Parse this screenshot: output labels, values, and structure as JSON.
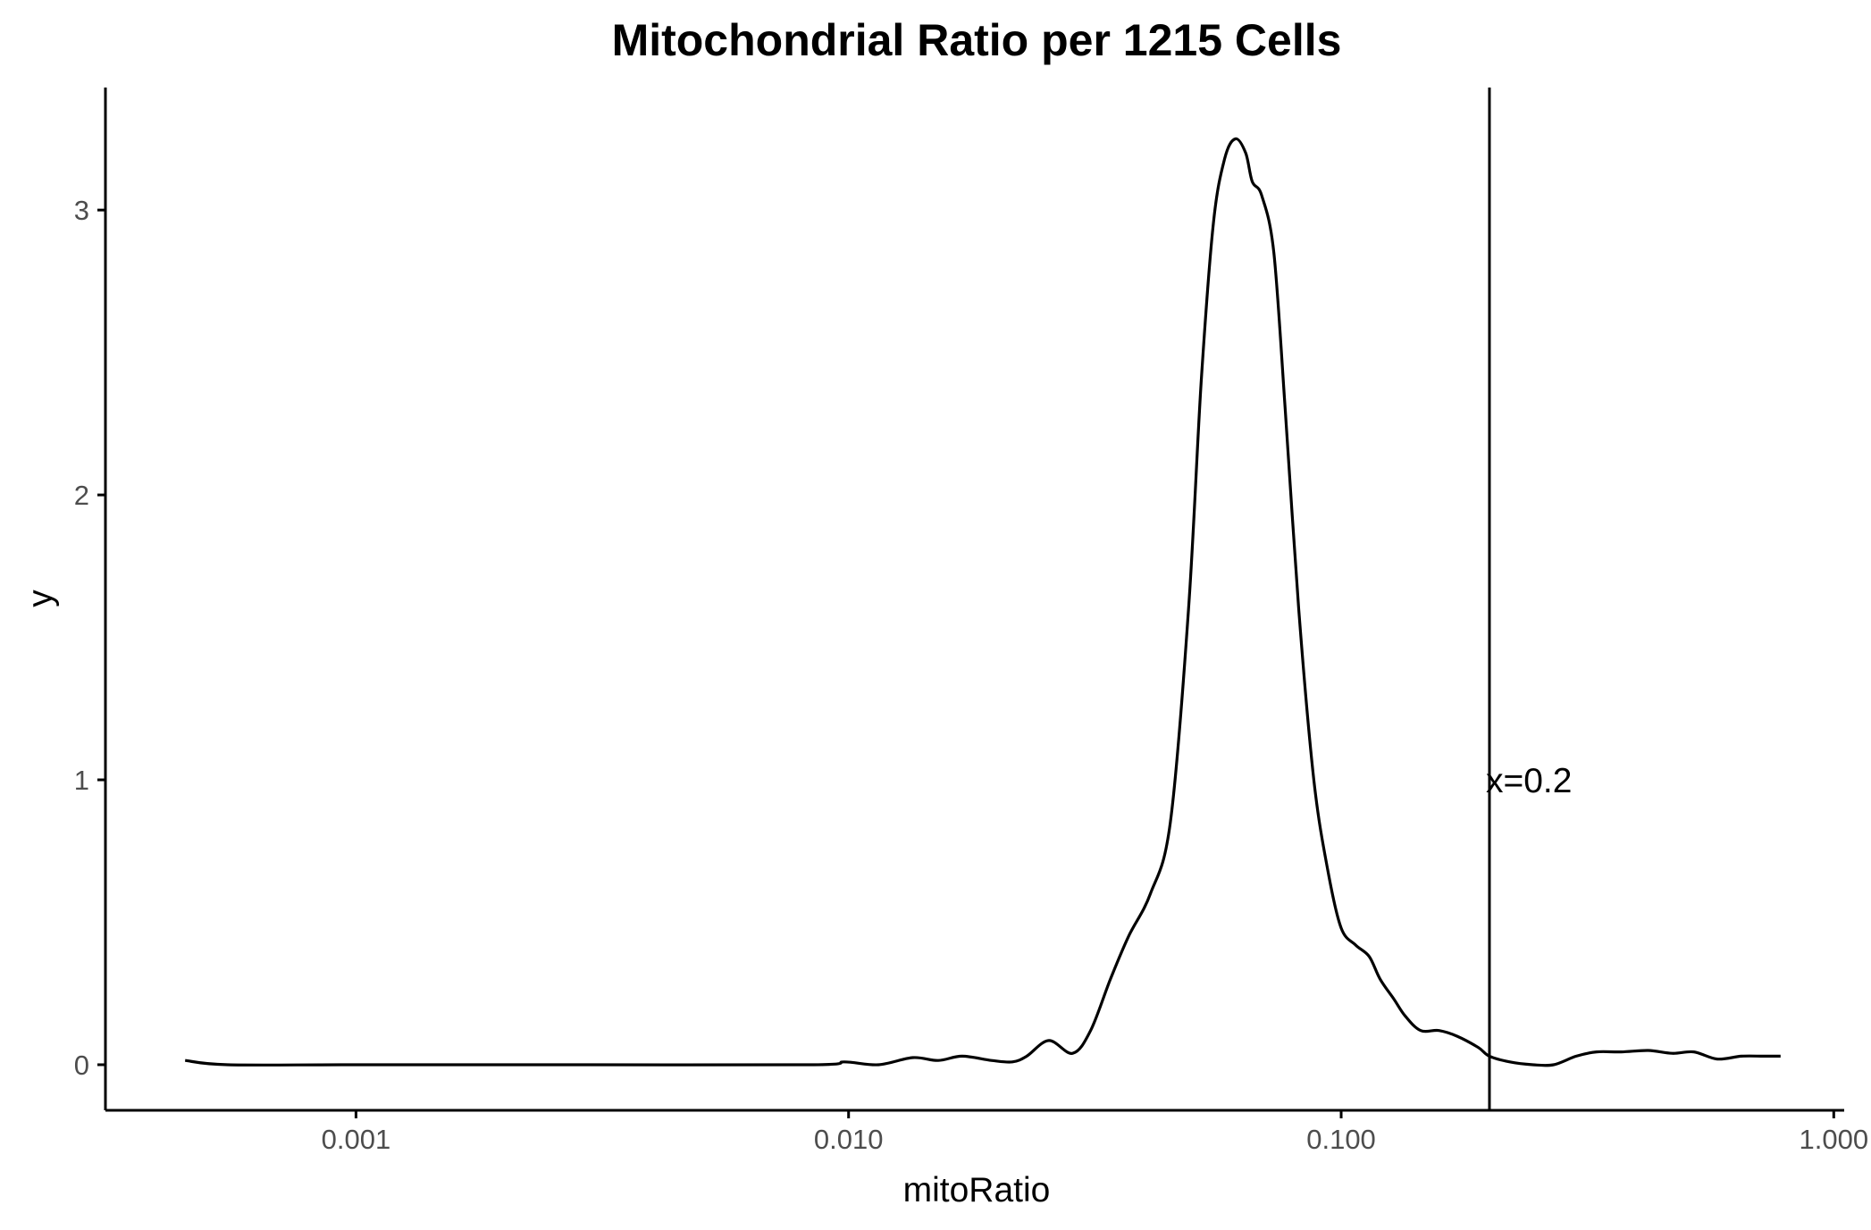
{
  "chart_data": {
    "type": "line",
    "title": "Mitochondrial Ratio per 1215 Cells",
    "xlabel": "mitoRatio",
    "ylabel": "y",
    "x_scale": "log10",
    "xlim": [
      0.00031,
      1.05
    ],
    "ylim": [
      -0.16,
      3.43
    ],
    "x_ticks": [
      {
        "value": 0.001,
        "label": "0.001"
      },
      {
        "value": 0.01,
        "label": "0.010"
      },
      {
        "value": 0.1,
        "label": "0.100"
      },
      {
        "value": 1.0,
        "label": "1.000"
      }
    ],
    "y_ticks": [
      {
        "value": 0,
        "label": "0"
      },
      {
        "value": 1,
        "label": "1"
      },
      {
        "value": 2,
        "label": "2"
      },
      {
        "value": 3,
        "label": "3"
      }
    ],
    "grid": false,
    "series": [
      {
        "color": "#000000",
        "x": [
          0.00045,
          0.00055,
          0.001,
          0.003,
          0.0085,
          0.0098,
          0.0115,
          0.0135,
          0.0152,
          0.017,
          0.0195,
          0.0215,
          0.023,
          0.0255,
          0.0285,
          0.031,
          0.034,
          0.037,
          0.041,
          0.045,
          0.049,
          0.052,
          0.055,
          0.058,
          0.061,
          0.064,
          0.066,
          0.069,
          0.073,
          0.077,
          0.082,
          0.088,
          0.094,
          0.1,
          0.107,
          0.114,
          0.12,
          0.128,
          0.135,
          0.145,
          0.158,
          0.172,
          0.19,
          0.2,
          0.22,
          0.245,
          0.27,
          0.3,
          0.33,
          0.37,
          0.42,
          0.47,
          0.52,
          0.58,
          0.65,
          0.72,
          0.78
        ],
        "y": [
          0.015,
          0.0,
          0.0,
          0.0,
          0.0,
          0.01,
          0.0,
          0.025,
          0.015,
          0.03,
          0.015,
          0.01,
          0.03,
          0.085,
          0.04,
          0.12,
          0.3,
          0.45,
          0.6,
          0.85,
          1.6,
          2.4,
          2.95,
          3.18,
          3.25,
          3.2,
          3.1,
          3.05,
          2.85,
          2.3,
          1.6,
          1.0,
          0.68,
          0.48,
          0.42,
          0.38,
          0.3,
          0.23,
          0.17,
          0.12,
          0.12,
          0.1,
          0.06,
          0.03,
          0.01,
          0.0,
          0.0,
          0.03,
          0.045,
          0.045,
          0.05,
          0.04,
          0.045,
          0.02,
          0.03,
          0.03,
          0.03
        ]
      }
    ],
    "annotations": [
      {
        "type": "vline",
        "x": 0.2,
        "text": "x=0.2",
        "y": 1.0
      }
    ]
  }
}
